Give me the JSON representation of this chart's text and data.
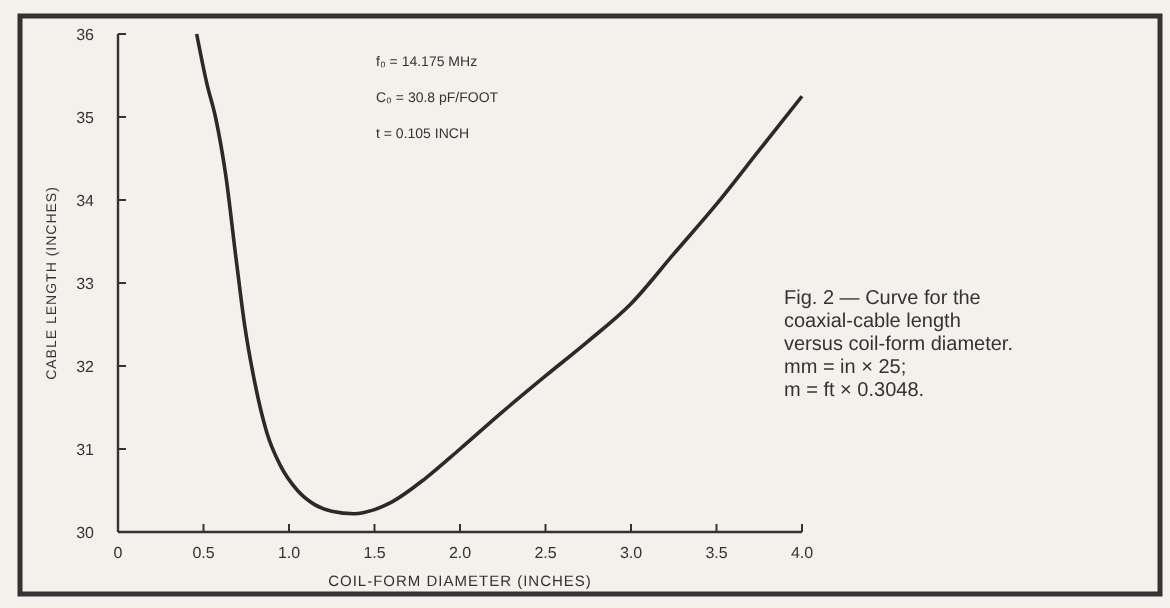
{
  "chart_data": {
    "type": "line",
    "xlabel": "COIL-FORM DIAMETER (INCHES)",
    "ylabel": "CABLE LENGTH (INCHES)",
    "annotations": [
      "f₀ = 14.175 MHz",
      "C₀ = 30.8 pF/FOOT",
      "t = 0.105 INCH",
      "Fig. 2 — Curve for the",
      "coaxial-cable length",
      "versus coil-form diameter.",
      "mm = in × 25;",
      "m = ft × 0.3048."
    ],
    "series": [
      {
        "color": "#2a2a2a",
        "x": [
          0.46,
          0.52,
          0.57,
          0.63,
          0.69,
          0.74,
          0.8,
          0.87,
          0.95,
          1.05,
          1.15,
          1.25,
          1.38,
          1.5,
          1.6,
          1.8,
          2.0,
          2.25,
          2.5,
          2.75,
          3.0,
          3.25,
          3.5,
          3.75,
          4.0
        ],
        "values": [
          36,
          35.4,
          35,
          34.3,
          33.3,
          32.5,
          31.8,
          31.2,
          30.8,
          30.5,
          30.33,
          30.25,
          30.22,
          30.27,
          30.36,
          30.65,
          31.0,
          31.45,
          31.88,
          32.3,
          32.75,
          33.35,
          33.95,
          34.6,
          35.25
        ]
      }
    ],
    "xlim": [
      0,
      4
    ],
    "ylim": [
      30,
      36
    ],
    "xticks": [
      0,
      0.5,
      {
        "value": 1,
        "label": "1.0"
      },
      1.5,
      {
        "value": 2,
        "label": "2.0"
      },
      2.5,
      {
        "value": 3,
        "label": "3.0"
      },
      3.5,
      {
        "value": 4,
        "label": "4.0"
      }
    ],
    "yticks": [
      30,
      31,
      32,
      33,
      34,
      35,
      36
    ],
    "grid": false,
    "marker": "none",
    "line_style": "solid"
  }
}
